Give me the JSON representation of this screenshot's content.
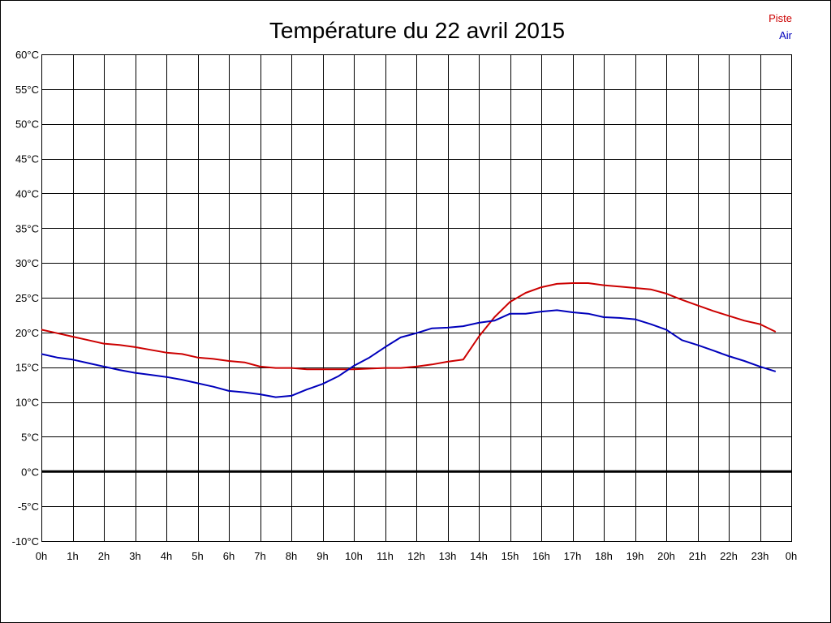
{
  "chart_data": {
    "type": "line",
    "title": "Température du 22 avril 2015",
    "xlabel": "",
    "ylabel": "",
    "x_ticks": [
      "0h",
      "1h",
      "2h",
      "3h",
      "4h",
      "5h",
      "6h",
      "7h",
      "8h",
      "9h",
      "10h",
      "11h",
      "12h",
      "13h",
      "14h",
      "15h",
      "16h",
      "17h",
      "18h",
      "19h",
      "20h",
      "21h",
      "22h",
      "23h",
      "0h"
    ],
    "y_ticks": [
      "60°C",
      "55°C",
      "50°C",
      "45°C",
      "40°C",
      "35°C",
      "30°C",
      "25°C",
      "20°C",
      "15°C",
      "10°C",
      "5°C",
      "0°C",
      "-5°C",
      "-10°C"
    ],
    "xlim": [
      0,
      24
    ],
    "ylim": [
      -10,
      60
    ],
    "grid": true,
    "legend_position": "top-right",
    "series": [
      {
        "name": "Piste",
        "color": "#cc0000",
        "x": [
          0,
          0.5,
          1,
          1.5,
          2,
          2.5,
          3,
          3.5,
          4,
          4.5,
          5,
          5.5,
          6,
          6.5,
          7,
          7.5,
          8,
          8.5,
          9,
          9.5,
          10,
          10.5,
          11,
          11.5,
          12,
          12.5,
          13,
          13.5,
          14,
          14.5,
          15,
          15.5,
          16,
          16.5,
          17,
          17.5,
          18,
          18.5,
          19,
          19.5,
          20,
          20.5,
          21,
          21.5,
          22,
          22.5,
          23,
          23.5
        ],
        "values": [
          20.4,
          19.9,
          19.4,
          18.9,
          18.4,
          18.2,
          17.9,
          17.5,
          17.1,
          16.9,
          16.4,
          16.2,
          15.9,
          15.7,
          15.1,
          14.9,
          14.9,
          14.7,
          14.7,
          14.7,
          14.7,
          14.8,
          14.9,
          14.9,
          15.1,
          15.4,
          15.8,
          16.1,
          19.4,
          22.2,
          24.4,
          25.7,
          26.5,
          27.0,
          27.1,
          27.1,
          26.8,
          26.6,
          26.4,
          26.2,
          25.6,
          24.7,
          23.9,
          23.1,
          22.4,
          21.7,
          21.2,
          20.1
        ]
      },
      {
        "name": "Air",
        "color": "#0000bb",
        "x": [
          0,
          0.5,
          1,
          1.5,
          2,
          2.5,
          3,
          3.5,
          4,
          4.5,
          5,
          5.5,
          6,
          6.5,
          7,
          7.5,
          8,
          8.5,
          9,
          9.5,
          10,
          10.5,
          11,
          11.5,
          12,
          12.5,
          13,
          13.5,
          14,
          14.5,
          15,
          15.5,
          16,
          16.5,
          17,
          17.5,
          18,
          18.5,
          19,
          19.5,
          20,
          20.5,
          21,
          21.5,
          22,
          22.5,
          23,
          23.5
        ],
        "values": [
          16.9,
          16.4,
          16.1,
          15.6,
          15.1,
          14.6,
          14.2,
          13.9,
          13.6,
          13.2,
          12.7,
          12.2,
          11.6,
          11.4,
          11.1,
          10.7,
          10.9,
          11.8,
          12.6,
          13.7,
          15.2,
          16.4,
          17.9,
          19.3,
          19.9,
          20.6,
          20.7,
          20.9,
          21.4,
          21.7,
          22.7,
          22.7,
          23.0,
          23.2,
          22.9,
          22.7,
          22.2,
          22.1,
          21.9,
          21.2,
          20.4,
          18.9,
          18.2,
          17.4,
          16.6,
          15.9,
          15.1,
          14.4
        ]
      }
    ]
  }
}
